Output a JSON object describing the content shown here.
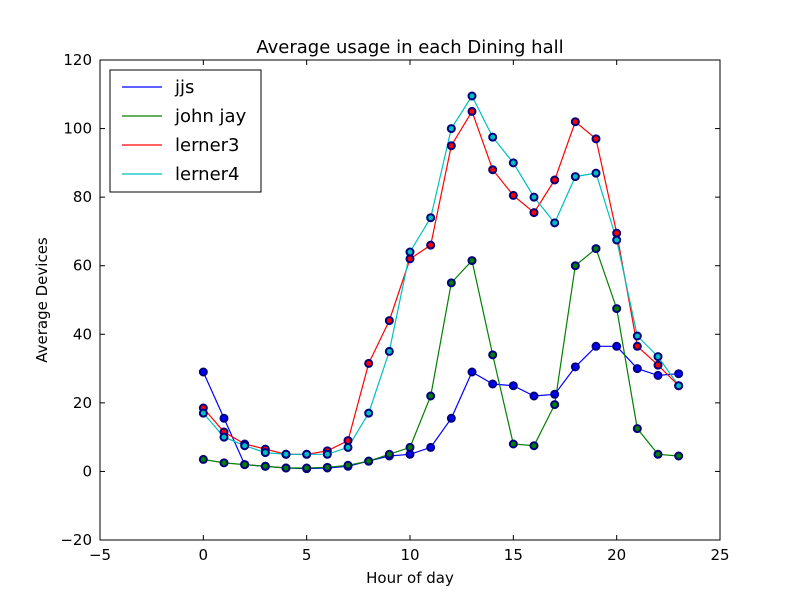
{
  "chart_data": {
    "type": "line",
    "title": "Average usage in each Dining hall",
    "xlabel": "Hour of day",
    "ylabel": "Average Devices",
    "xlim": [
      -5,
      25
    ],
    "ylim": [
      -20,
      120
    ],
    "xticks": [
      "−5",
      "0",
      "5",
      "10",
      "15",
      "20",
      "25"
    ],
    "yticks": [
      "−20",
      "0",
      "20",
      "40",
      "60",
      "80",
      "100",
      "120"
    ],
    "grid": false,
    "legend_position": "top-left",
    "marker_color": "#000080",
    "x": [
      0,
      1,
      2,
      3,
      4,
      5,
      6,
      7,
      8,
      9,
      10,
      11,
      12,
      13,
      14,
      15,
      16,
      17,
      18,
      19,
      20,
      21,
      22,
      23
    ],
    "series": [
      {
        "name": "jjs",
        "color": "#0000ff",
        "values": [
          29,
          15.5,
          2,
          1.5,
          1,
          0.8,
          1,
          1.5,
          3,
          4.5,
          5,
          7,
          15.5,
          29,
          25.5,
          25,
          22,
          22.5,
          30.5,
          36.5,
          36.5,
          30,
          28,
          28.5
        ]
      },
      {
        "name": "john jay",
        "color": "#008000",
        "values": [
          3.5,
          2.5,
          2,
          1.5,
          1,
          1,
          1.2,
          1.8,
          3,
          5,
          7,
          22,
          55,
          61.5,
          34,
          8,
          7.5,
          19.5,
          60,
          65,
          47.5,
          12.5,
          5,
          4.5
        ]
      },
      {
        "name": "lerner3",
        "color": "#ff0000",
        "values": [
          18.5,
          11.5,
          8,
          6.5,
          5,
          5,
          6,
          9,
          31.5,
          44,
          62,
          66,
          95,
          105,
          88,
          80.5,
          75.5,
          85,
          102,
          97,
          69.5,
          36.5,
          31,
          25
        ]
      },
      {
        "name": "lerner4",
        "color": "#00bfbf",
        "values": [
          17,
          10,
          7.5,
          5.5,
          5,
          5,
          5,
          7,
          17,
          35,
          64,
          74,
          100,
          109.5,
          97.5,
          90,
          80,
          72.5,
          86,
          87,
          67.5,
          39.5,
          33.5,
          25
        ]
      }
    ]
  }
}
